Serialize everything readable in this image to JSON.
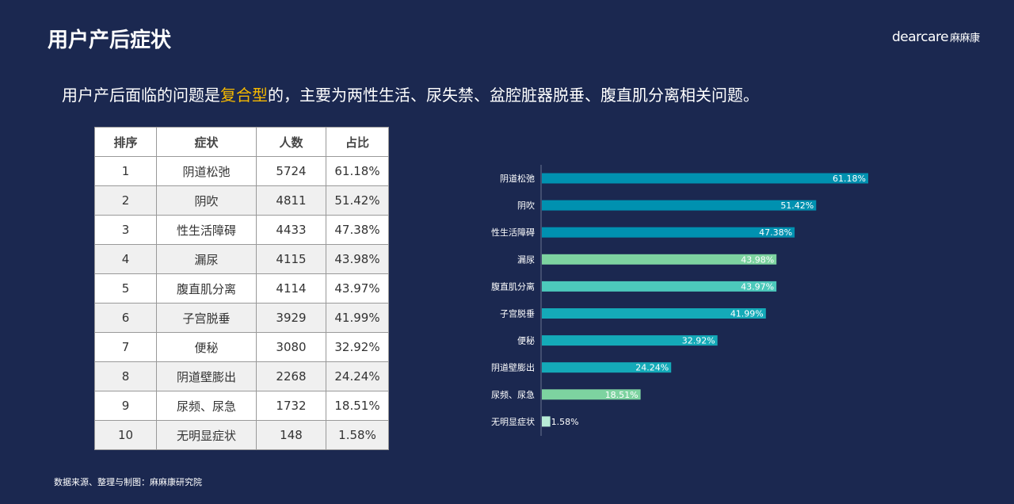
{
  "title": "用户产后症状",
  "logo": {
    "en": "dearcare",
    "cn": "麻麻康"
  },
  "subtitle": {
    "pre": "用户产后面临的问题是",
    "highlight": "复合型",
    "post": "的，主要为两性生活、尿失禁、盆腔脏器脱垂、腹直肌分离相关问题。"
  },
  "table": {
    "headers": [
      "排序",
      "症状",
      "人数",
      "占比"
    ],
    "rows": [
      [
        "1",
        "阴道松弛",
        "5724",
        "61.18%"
      ],
      [
        "2",
        "阴吹",
        "4811",
        "51.42%"
      ],
      [
        "3",
        "性生活障碍",
        "4433",
        "47.38%"
      ],
      [
        "4",
        "漏尿",
        "4115",
        "43.98%"
      ],
      [
        "5",
        "腹直肌分离",
        "4114",
        "43.97%"
      ],
      [
        "6",
        "子宫脱垂",
        "3929",
        "41.99%"
      ],
      [
        "7",
        "便秘",
        "3080",
        "32.92%"
      ],
      [
        "8",
        "阴道壁膨出",
        "2268",
        "24.24%"
      ],
      [
        "9",
        "尿频、尿急",
        "1732",
        "18.51%"
      ],
      [
        "10",
        "无明显症状",
        "148",
        "1.58%"
      ]
    ]
  },
  "chart_data": {
    "type": "bar",
    "orientation": "horizontal",
    "categories": [
      "阴道松弛",
      "阴吹",
      "性生活障碍",
      "漏尿",
      "腹直肌分离",
      "子宫脱垂",
      "便秘",
      "阴道壁膨出",
      "尿频、尿急",
      "无明显症状"
    ],
    "values": [
      61.18,
      51.42,
      47.38,
      43.98,
      43.97,
      41.99,
      32.92,
      24.24,
      18.51,
      1.58
    ],
    "labels": [
      "61.18%",
      "51.42%",
      "47.38%",
      "43.98%",
      "43.97%",
      "41.99%",
      "32.92%",
      "24.24%",
      "18.51%",
      "1.58%"
    ],
    "colors": [
      "#0091b0",
      "#0091b0",
      "#0091b0",
      "#7dd3a0",
      "#4cc9bb",
      "#14aab8",
      "#14aab8",
      "#14aab8",
      "#7dd3a0",
      "#b8ecd6"
    ],
    "xlim": [
      0,
      61.18
    ]
  },
  "source": "数据来源、整理与制图：麻麻康研究院"
}
